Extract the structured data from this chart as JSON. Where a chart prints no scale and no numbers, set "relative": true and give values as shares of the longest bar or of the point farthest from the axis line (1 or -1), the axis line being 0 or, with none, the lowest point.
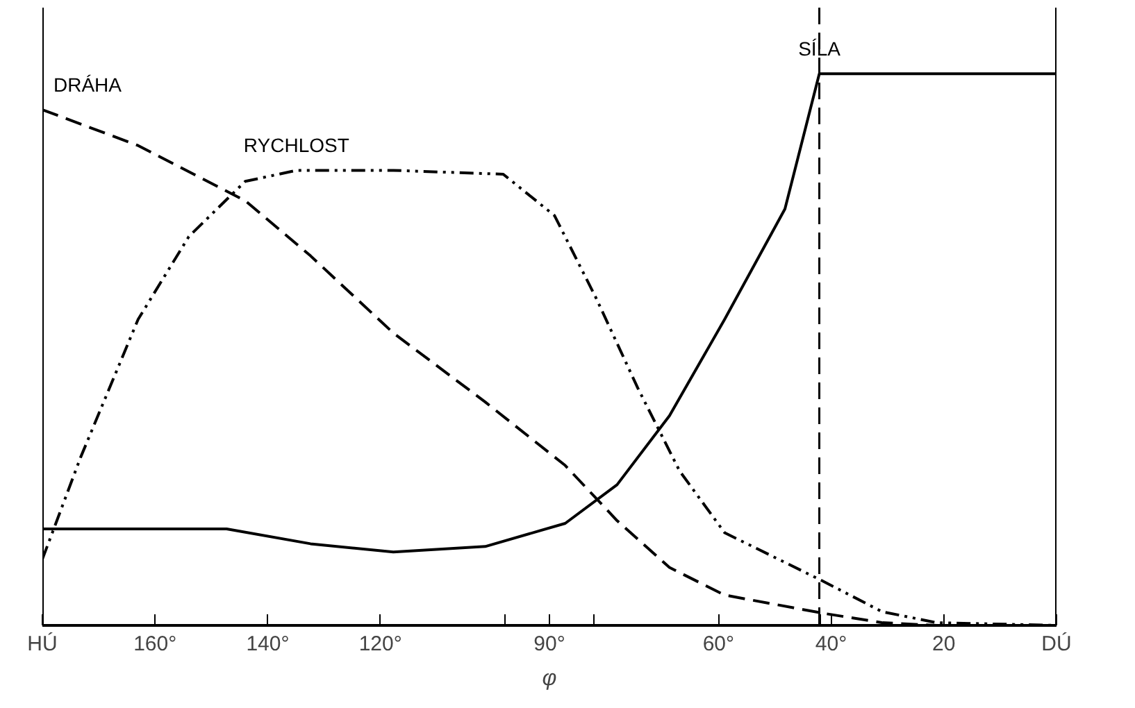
{
  "chart_data": {
    "type": "line",
    "relative": true,
    "xlabel": "φ",
    "xlim": [
      180,
      0
    ],
    "xticks": [
      {
        "value": 180,
        "label": "HÚ"
      },
      {
        "value": 160,
        "label": "160°"
      },
      {
        "value": 140,
        "label": "140°"
      },
      {
        "value": 120,
        "label": "120°"
      },
      {
        "value": 98,
        "label": null
      },
      {
        "value": 90,
        "label": "90°"
      },
      {
        "value": 82,
        "label": null
      },
      {
        "value": 60,
        "label": "60°"
      },
      {
        "value": 42,
        "label": null
      },
      {
        "value": 40,
        "label": "40°"
      },
      {
        "value": 20,
        "label": "20"
      },
      {
        "value": 0,
        "label": "DÚ"
      }
    ],
    "grid": false,
    "series": [
      {
        "name": "DRÁHA",
        "color": "#000000",
        "line_style": "dashed",
        "x": [
          180,
          163,
          144,
          132.4,
          117.7,
          101.4,
          87.2,
          78,
          68.7,
          58.9,
          41.4,
          31,
          21.3,
          0
        ],
        "values": [
          0.935,
          0.87,
          0.77,
          0.67,
          0.53,
          0.405,
          0.29,
          0.19,
          0.105,
          0.055,
          0.022,
          0.005,
          0,
          0
        ]
      },
      {
        "name": "RYCHLOST",
        "color": "#000000",
        "line_style": "dashdot",
        "x": [
          180,
          173.2,
          163,
          154,
          144,
          134.9,
          117.7,
          98.2,
          89.1,
          81.7,
          74.3,
          66.9,
          58.9,
          41.4,
          31,
          21.3,
          0
        ],
        "values": [
          0.12,
          0.305,
          0.555,
          0.705,
          0.805,
          0.825,
          0.825,
          0.818,
          0.743,
          0.593,
          0.43,
          0.28,
          0.168,
          0.08,
          0.025,
          0.005,
          0
        ]
      },
      {
        "name": "SÍLA",
        "color": "#000000",
        "line_style": "solid",
        "x": [
          180,
          147.3,
          132.4,
          117.7,
          101.4,
          87.2,
          78,
          68.7,
          58.9,
          48.2,
          42.1,
          0
        ],
        "values": [
          0.175,
          0.175,
          0.148,
          0.133,
          0.143,
          0.185,
          0.255,
          0.38,
          0.555,
          0.755,
          1,
          1
        ]
      }
    ],
    "ref_lines": [
      {
        "axis": "x",
        "value": 42.1,
        "color": "#000000",
        "line_style": "dashed"
      }
    ]
  }
}
